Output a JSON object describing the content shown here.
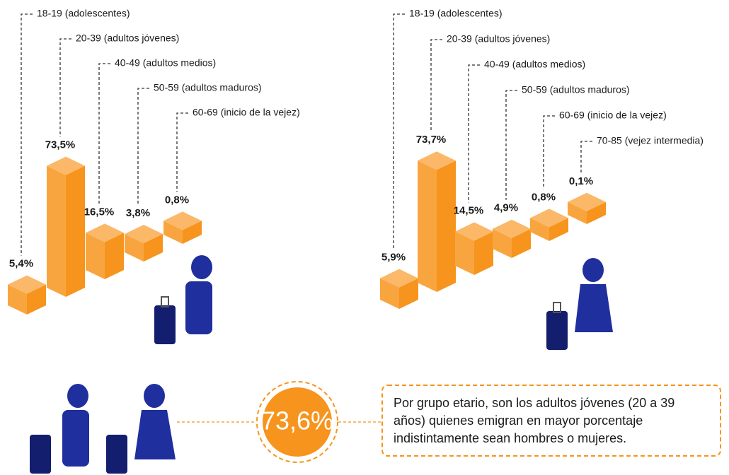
{
  "chart_data": [
    {
      "type": "iso-bar",
      "categories": [
        "18-19 (adolescentes)",
        "20-39 (adultos jóvenes)",
        "40-49 (adultos medios)",
        "50-59 (adultos maduros)",
        "60-69 (inicio de la vejez)"
      ],
      "values": [
        5.4,
        73.5,
        16.5,
        3.8,
        0.8
      ],
      "value_labels": [
        "5,4%",
        "73,5%",
        "16,5%",
        "3,8%",
        "0,8%"
      ],
      "color": "#f7941d"
    },
    {
      "type": "iso-bar",
      "categories": [
        "18-19 (adolescentes)",
        "20-39 (adultos jóvenes)",
        "40-49 (adultos medios)",
        "50-59 (adultos maduros)",
        "60-69 (inicio de la vejez)",
        "70-85 (vejez intermedia)"
      ],
      "values": [
        5.9,
        73.7,
        14.5,
        4.9,
        0.8,
        0.1
      ],
      "value_labels": [
        "5,9%",
        "73,7%",
        "14,5%",
        "4,9%",
        "0,8%",
        "0,1%"
      ],
      "color": "#f7941d"
    }
  ],
  "callout": {
    "value": 73.6,
    "label": "73,6%",
    "lines": [
      "Por grupo etario, son los adultos jóvenes (20 a 39",
      "años) quienes emigran en mayor porcentaje",
      "indistintamente sean hombres o mujeres."
    ]
  }
}
